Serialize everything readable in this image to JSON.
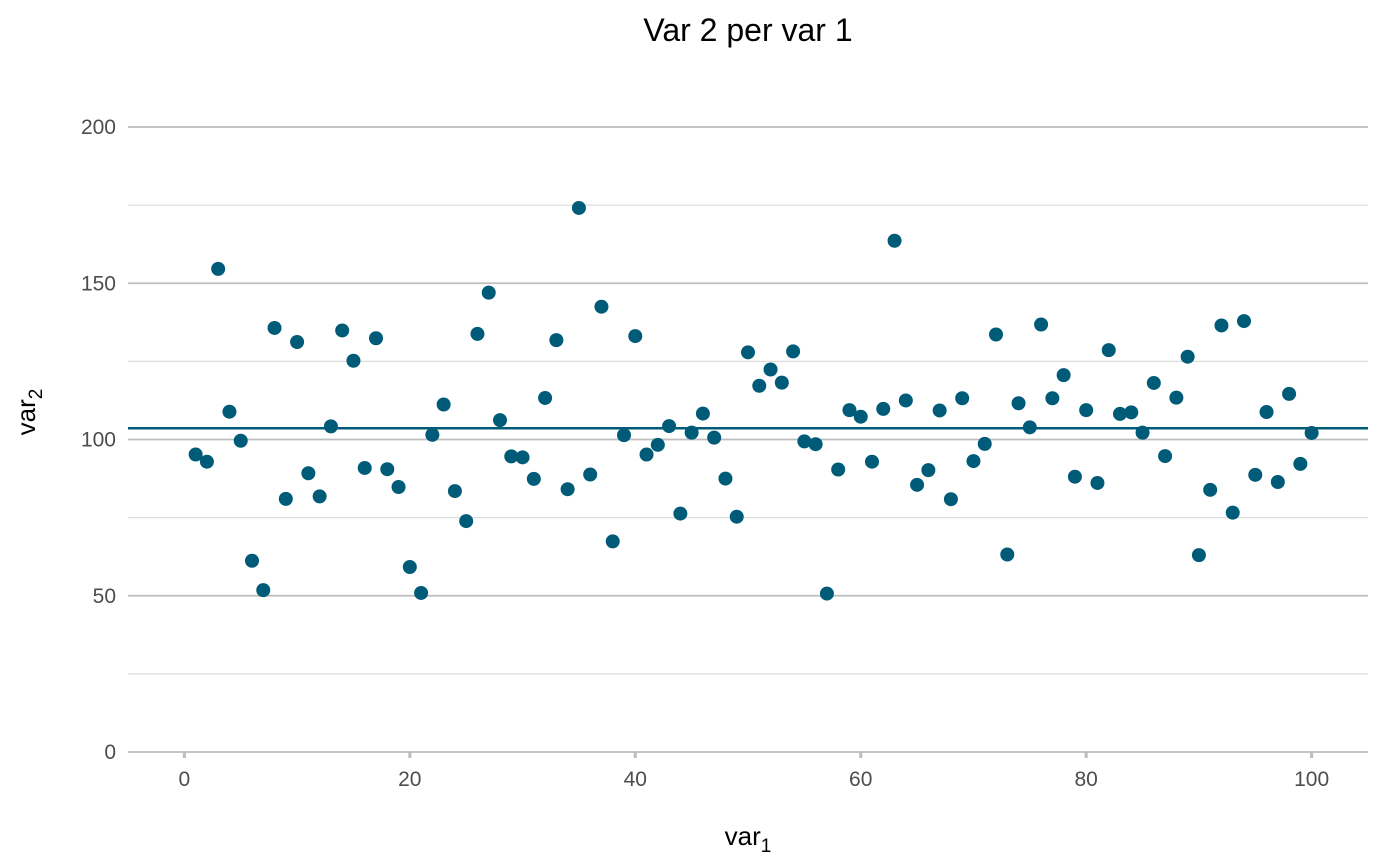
{
  "chart_data": {
    "type": "scatter",
    "title": "Var 2 per var 1",
    "xlabel": {
      "base": "var",
      "subscript": "1"
    },
    "ylabel": {
      "base": "var",
      "subscript": "2"
    },
    "xlim": [
      -5,
      105
    ],
    "ylim": [
      0,
      200
    ],
    "x_ticks": [
      0,
      20,
      40,
      60,
      80,
      100
    ],
    "x_tick_labels": [
      "0",
      "20",
      "40",
      "60",
      "80",
      "100"
    ],
    "y_ticks": [
      0,
      50,
      100,
      150,
      200
    ],
    "y_tick_labels": [
      "0",
      "50",
      "100",
      "150",
      "200"
    ],
    "y_minor_ticks": [
      25,
      75,
      125,
      175
    ],
    "grid": true,
    "point_color": "#005b78",
    "hline": {
      "y": 103.6,
      "color": "#005b78"
    },
    "series": [
      {
        "x": [
          1,
          2,
          3,
          4,
          5,
          6,
          7,
          8,
          9,
          10,
          11,
          12,
          13,
          14,
          15,
          16,
          17,
          18,
          19,
          20,
          21,
          22,
          23,
          24,
          25,
          26,
          27,
          28,
          29,
          30,
          31,
          32,
          33,
          34,
          35,
          36,
          37,
          38,
          39,
          40,
          41,
          42,
          43,
          44,
          45,
          46,
          47,
          48,
          49,
          50,
          51,
          52,
          53,
          54,
          55,
          56,
          57,
          58,
          59,
          60,
          61,
          62,
          63,
          64,
          65,
          66,
          67,
          68,
          69,
          70,
          71,
          72,
          73,
          74,
          75,
          76,
          77,
          78,
          79,
          80,
          81,
          82,
          83,
          84,
          85,
          86,
          87,
          88,
          89,
          90,
          91,
          92,
          93,
          94,
          95,
          96,
          97,
          98,
          99,
          100
        ],
        "y": [
          95.2,
          92.9,
          154.6,
          108.9,
          99.6,
          61.2,
          51.8,
          135.7,
          81.0,
          131.2,
          89.2,
          81.8,
          104.2,
          134.9,
          125.2,
          90.9,
          132.4,
          90.5,
          84.8,
          59.2,
          50.9,
          101.5,
          111.2,
          83.5,
          73.9,
          133.8,
          147.0,
          106.2,
          94.6,
          94.3,
          87.4,
          113.3,
          131.8,
          84.1,
          174.1,
          88.8,
          142.5,
          67.4,
          101.4,
          133.1,
          95.2,
          98.3,
          104.3,
          76.3,
          102.2,
          108.3,
          100.6,
          87.5,
          75.3,
          127.9,
          117.2,
          122.4,
          118.2,
          128.2,
          99.4,
          98.5,
          50.7,
          90.4,
          109.4,
          107.3,
          92.9,
          109.8,
          163.6,
          112.5,
          85.5,
          90.2,
          109.3,
          80.9,
          113.2,
          93.1,
          98.6,
          133.6,
          63.2,
          111.6,
          103.9,
          136.8,
          113.2,
          120.6,
          88.1,
          109.4,
          86.1,
          128.6,
          108.2,
          108.7,
          102.2,
          118.1,
          94.7,
          113.4,
          126.5,
          63.0,
          83.9,
          136.5,
          76.6,
          137.9,
          88.7,
          108.8,
          86.4,
          114.6,
          92.2,
          102.1
        ]
      }
    ]
  }
}
